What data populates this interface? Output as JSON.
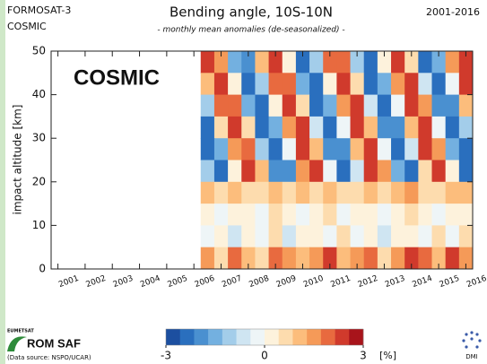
{
  "header": {
    "mission": "FORMOSAT-3",
    "satellite": "COSMIC",
    "period": "2001-2016"
  },
  "chart_data": {
    "type": "heatmap",
    "title": "Bending angle, 10S-10N",
    "subtitle": "- monthly mean anomalies (de-seasonalized) -",
    "annotation": "COSMIC",
    "ylabel": "impact altitude [km]",
    "x": [
      2006.5,
      2007,
      2007.5,
      2008,
      2008.5,
      2009,
      2009.5,
      2010,
      2010.5,
      2011,
      2011.5,
      2012,
      2012.5,
      2013,
      2013.5,
      2014,
      2014.5,
      2015,
      2015.5,
      2016
    ],
    "y": [
      47.5,
      42.5,
      37.5,
      32.5,
      27.5,
      22.5,
      17.5,
      12.5,
      7.5,
      2.5
    ],
    "values": [
      [
        2.3,
        1.4,
        -1.7,
        -2.1,
        0.9,
        2.5,
        0.1,
        -2.4,
        -1.1,
        2.0,
        1.9,
        -1.2,
        -2.4,
        0.2,
        2.5,
        0.8,
        -2.2,
        -1.7,
        1.5,
        2.3
      ],
      [
        1.0,
        2.5,
        0.0,
        -2.4,
        -1.0,
        2.0,
        1.9,
        -1.3,
        -2.4,
        0.3,
        2.5,
        0.7,
        -2.2,
        -1.6,
        1.5,
        2.2,
        -0.6,
        -2.5,
        -0.4,
        2.3
      ],
      [
        -1.0,
        2.1,
        1.8,
        -1.3,
        -2.3,
        0.4,
        2.5,
        0.6,
        -2.2,
        -1.5,
        1.6,
        2.2,
        -0.7,
        -2.5,
        -0.3,
        2.4,
        1.3,
        -1.9,
        -2.0,
        1.0
      ],
      [
        -2.3,
        0.5,
        2.5,
        0.6,
        -2.3,
        -1.5,
        1.7,
        2.2,
        -0.8,
        -2.5,
        -0.2,
        2.4,
        1.2,
        -1.9,
        -2.0,
        1.1,
        2.4,
        -0.1,
        -2.5,
        -0.9
      ],
      [
        -2.3,
        -1.4,
        1.7,
        2.1,
        -0.9,
        -2.5,
        -0.1,
        2.4,
        1.1,
        -2.0,
        -1.9,
        1.2,
        2.4,
        -0.2,
        -2.5,
        -0.8,
        2.2,
        1.7,
        -1.5,
        -2.3
      ],
      [
        -1.0,
        -2.5,
        0.0,
        2.4,
        1.0,
        -2.0,
        -1.9,
        1.3,
        2.4,
        -0.3,
        -2.5,
        -0.7,
        2.2,
        1.6,
        -1.5,
        -2.2,
        0.6,
        2.5,
        0.4,
        -2.3
      ],
      [
        0.9,
        0.6,
        1.0,
        0.7,
        0.8,
        1.1,
        0.5,
        0.9,
        0.7,
        1.2,
        0.6,
        0.8,
        1.0,
        0.7,
        0.9,
        1.3,
        0.6,
        0.8,
        1.1,
        0.9
      ],
      [
        0.3,
        -0.2,
        0.4,
        0.1,
        -0.3,
        0.5,
        0.2,
        -0.1,
        0.3,
        0.6,
        -0.4,
        0.2,
        0.4,
        -0.2,
        0.1,
        0.5,
        0.3,
        -0.3,
        0.2,
        0.4
      ],
      [
        -0.4,
        0.2,
        -0.6,
        0.3,
        -0.2,
        0.5,
        -0.5,
        0.1,
        0.4,
        -0.3,
        0.6,
        -0.1,
        0.3,
        -0.5,
        0.2,
        0.4,
        -0.2,
        0.7,
        -0.4,
        0.5
      ],
      [
        1.5,
        0.8,
        1.9,
        1.2,
        0.6,
        2.0,
        1.4,
        0.9,
        1.7,
        2.2,
        1.0,
        1.6,
        2.1,
        0.7,
        1.3,
        2.4,
        1.8,
        1.1,
        2.3,
        1.6
      ]
    ],
    "xlim": [
      2000.75,
      2016.25
    ],
    "ylim": [
      0,
      50
    ],
    "xticks": [
      2001,
      2002,
      2003,
      2004,
      2005,
      2006,
      2007,
      2008,
      2009,
      2010,
      2011,
      2012,
      2013,
      2014,
      2015,
      2016
    ],
    "yticks": [
      0,
      10,
      20,
      30,
      40,
      50
    ],
    "colorbar": {
      "lim": [
        -3,
        3
      ],
      "ticks": [
        -3,
        0,
        3
      ],
      "unit": "[%]",
      "colors": [
        "#1c4fa0",
        "#2a6fbe",
        "#4a90d0",
        "#73b0e0",
        "#a3cdea",
        "#cfe5f2",
        "#eef5f7",
        "#fdf2dc",
        "#fddcae",
        "#fcbd7c",
        "#f59a58",
        "#e86a3f",
        "#d03a2c",
        "#a8141b"
      ]
    }
  },
  "footer": {
    "org": "EUMETSAT",
    "logo": "ROM SAF",
    "source": "(Data source: NSPO/UCAR)",
    "institute": "DMI"
  }
}
